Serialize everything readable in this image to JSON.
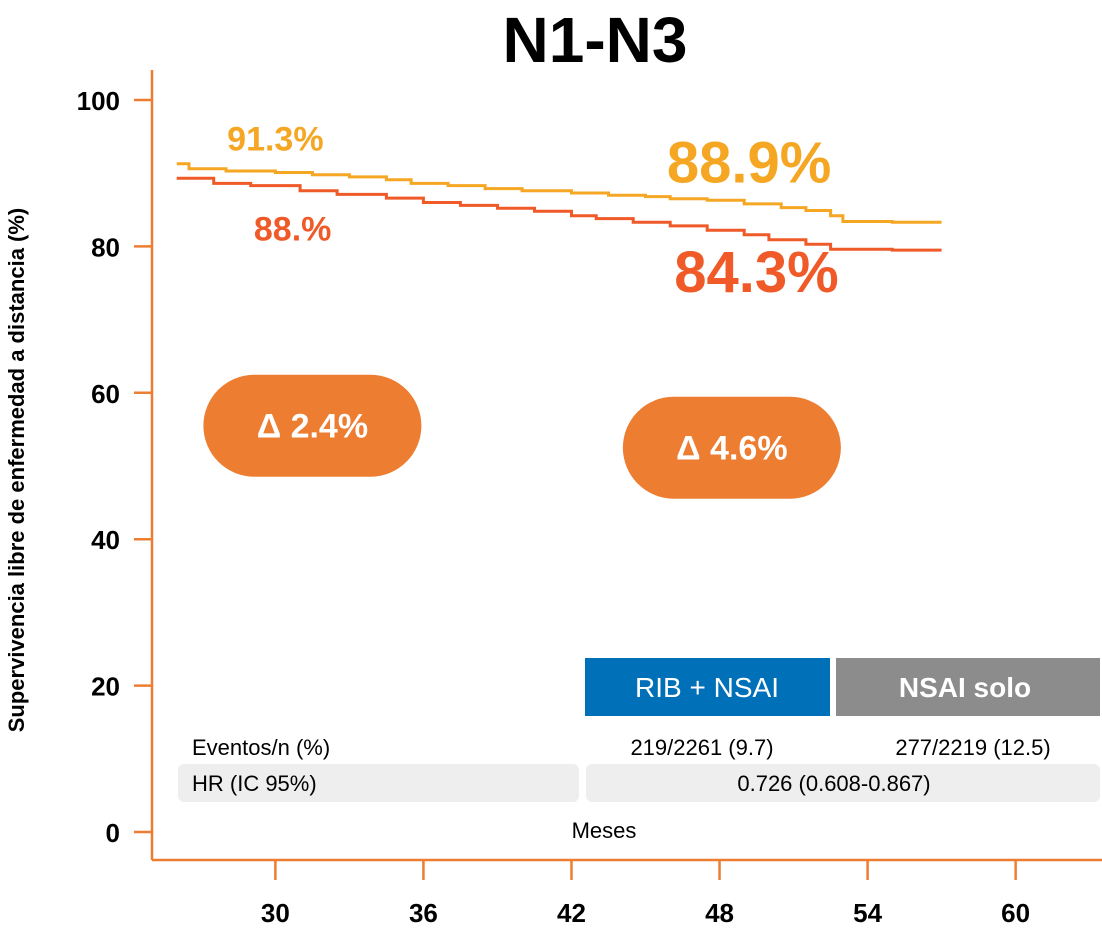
{
  "chart_data": {
    "type": "line",
    "title": "N1-N3",
    "ylabel": "Supervivencia libre de enfermedad a distancia (%)",
    "xlabel": "Meses",
    "x_ticks": [
      30,
      36,
      42,
      48,
      54,
      60
    ],
    "y_ticks": [
      0,
      20,
      40,
      60,
      80,
      100
    ],
    "xlim": [
      25,
      63.5
    ],
    "ylim": [
      0,
      104
    ],
    "grid": false,
    "series": [
      {
        "name": "RIB + NSAI",
        "color": "#f5a623",
        "points": [
          [
            26,
            91.3
          ],
          [
            26.5,
            90.6
          ],
          [
            28,
            90.3
          ],
          [
            30,
            90.1
          ],
          [
            31.5,
            89.8
          ],
          [
            33,
            89.5
          ],
          [
            34.5,
            89.1
          ],
          [
            35.5,
            88.6
          ],
          [
            37,
            88.3
          ],
          [
            38.5,
            87.9
          ],
          [
            40,
            87.6
          ],
          [
            42,
            87.3
          ],
          [
            43.5,
            87
          ],
          [
            45,
            86.8
          ],
          [
            46,
            86.5
          ],
          [
            47.5,
            86.3
          ],
          [
            49,
            85.8
          ],
          [
            50.5,
            85.3
          ],
          [
            51.5,
            84.9
          ],
          [
            52.5,
            84.2
          ],
          [
            53,
            83.4
          ],
          [
            55,
            83.3
          ],
          [
            57,
            83.3
          ]
        ]
      },
      {
        "name": "NSAI solo",
        "color": "#ef5a28",
        "points": [
          [
            26,
            89.3
          ],
          [
            27.5,
            88.6
          ],
          [
            29,
            88.3
          ],
          [
            31,
            87.6
          ],
          [
            32.5,
            87.1
          ],
          [
            34.5,
            86.6
          ],
          [
            36,
            86
          ],
          [
            37.5,
            85.6
          ],
          [
            39,
            85.2
          ],
          [
            40.5,
            84.8
          ],
          [
            42,
            84.2
          ],
          [
            43,
            83.8
          ],
          [
            44.5,
            83.3
          ],
          [
            46,
            82.8
          ],
          [
            47.5,
            82.2
          ],
          [
            49,
            81.6
          ],
          [
            50,
            80.9
          ],
          [
            51.5,
            80.3
          ],
          [
            52.5,
            79.6
          ],
          [
            55,
            79.5
          ],
          [
            57,
            79.5
          ]
        ]
      }
    ],
    "annotations": [
      {
        "text": "91.3%",
        "color": "#f5a623",
        "x": 30,
        "y": 93.1,
        "size": "medium"
      },
      {
        "text": "88.%",
        "color": "#ef5a28",
        "x": 30.7,
        "y": 80.8,
        "size": "medium"
      },
      {
        "text": "88.9%",
        "color": "#f5a623",
        "x": 49.2,
        "y": 88.7,
        "size": "large"
      },
      {
        "text": "84.3%",
        "color": "#ef5a28",
        "x": 49.5,
        "y": 73.8,
        "size": "large"
      }
    ],
    "deltas": [
      {
        "text": "Δ 2.4%",
        "x": 31.5,
        "y": 55.5,
        "color": "#ed7d31"
      },
      {
        "text": "Δ 4.6%",
        "x": 48.5,
        "y": 52.5,
        "color": "#ed7d31"
      }
    ],
    "legend": {
      "items": [
        {
          "label": "RIB + NSAI",
          "color": "#0070b8"
        },
        {
          "label": "NSAI solo",
          "color": "#8c8c8c"
        }
      ]
    },
    "table": {
      "rows": [
        {
          "label": "Eventos/n (%)",
          "rib_nsai": "219/2261 (9.7)",
          "nsai_solo": "277/2219 (12.5)"
        },
        {
          "label": "HR (IC 95%)",
          "combined": "0.726 (0.608-0.867)"
        }
      ]
    }
  },
  "colors": {
    "axis": "#ed7d31",
    "row_bg": "#eeeeee",
    "pill_text": "#ffffff"
  }
}
